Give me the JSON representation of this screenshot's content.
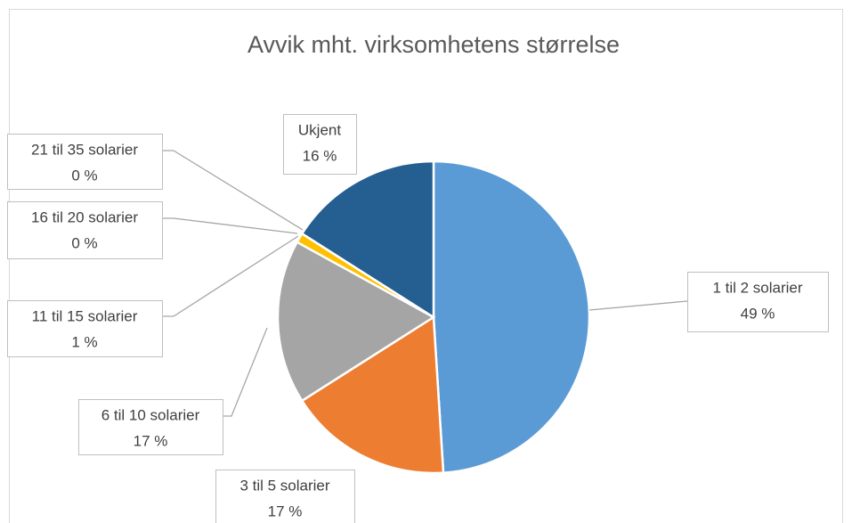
{
  "chart_data": {
    "type": "pie",
    "title": "Avvik mht. virksomhetens størrelse",
    "categories": [
      "1 til 2 solarier",
      "3 til 5 solarier",
      "6 til 10 solarier",
      "11 til 15 solarier",
      "16 til 20 solarier",
      "21 til 35 solarier",
      "Ukjent"
    ],
    "values": [
      49,
      17,
      17,
      1,
      0,
      0,
      16
    ],
    "value_labels": [
      "49 %",
      "17 %",
      "17 %",
      "1 %",
      "0 %",
      "0 %",
      "16 %"
    ],
    "colors": [
      "#5b9bd5",
      "#ed7d31",
      "#a5a5a5",
      "#ffc000",
      "#4472c4",
      "#70ad47",
      "#255e91"
    ]
  }
}
